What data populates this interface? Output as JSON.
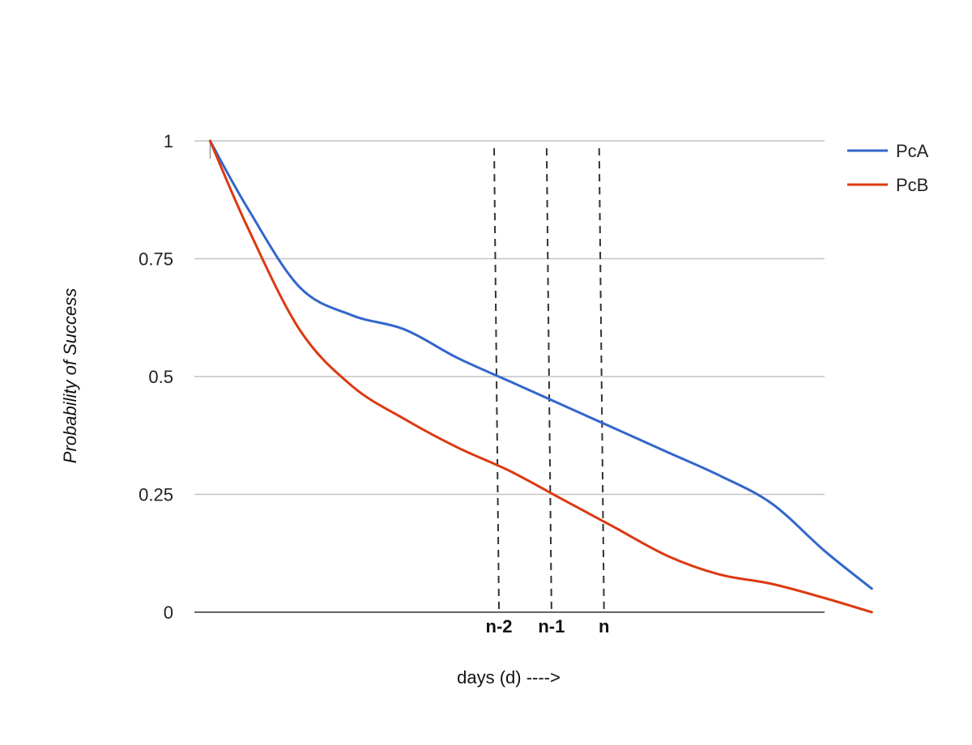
{
  "chart_data": {
    "type": "line",
    "title": "",
    "xlabel": "days (d) ---->",
    "ylabel": "Probability of Success",
    "ylim": [
      0,
      1
    ],
    "xlim": [
      0,
      12
    ],
    "yticks": [
      {
        "value": 0,
        "label": "0"
      },
      {
        "value": 0.25,
        "label": "0.25"
      },
      {
        "value": 0.5,
        "label": "0.5"
      },
      {
        "value": 0.75,
        "label": "0.75"
      },
      {
        "value": 1,
        "label": "1"
      }
    ],
    "grid": true,
    "legend_position": "top-right",
    "markers": [
      {
        "label": "n-2",
        "x": 5.8
      },
      {
        "label": "n-1",
        "x": 6.8
      },
      {
        "label": "n",
        "x": 7.8
      }
    ],
    "series": [
      {
        "name": "PcA",
        "color": "#3366cc",
        "points": [
          [
            0.3,
            1.0
          ],
          [
            1.0,
            0.86
          ],
          [
            2.0,
            0.69
          ],
          [
            3.0,
            0.63
          ],
          [
            4.0,
            0.6
          ],
          [
            5.0,
            0.54
          ],
          [
            6.0,
            0.49
          ],
          [
            7.0,
            0.44
          ],
          [
            8.0,
            0.39
          ],
          [
            9.0,
            0.34
          ],
          [
            10.0,
            0.29
          ],
          [
            11.0,
            0.23
          ],
          [
            12.0,
            0.13
          ],
          [
            12.9,
            0.05
          ]
        ]
      },
      {
        "name": "PcB",
        "color": "#dc3912",
        "points": [
          [
            0.3,
            1.0
          ],
          [
            1.0,
            0.82
          ],
          [
            2.0,
            0.6
          ],
          [
            3.0,
            0.48
          ],
          [
            4.0,
            0.41
          ],
          [
            5.0,
            0.35
          ],
          [
            6.0,
            0.3
          ],
          [
            7.0,
            0.24
          ],
          [
            8.0,
            0.18
          ],
          [
            9.0,
            0.12
          ],
          [
            10.0,
            0.08
          ],
          [
            11.0,
            0.06
          ],
          [
            12.0,
            0.03
          ],
          [
            12.9,
            0.0
          ]
        ]
      }
    ]
  }
}
